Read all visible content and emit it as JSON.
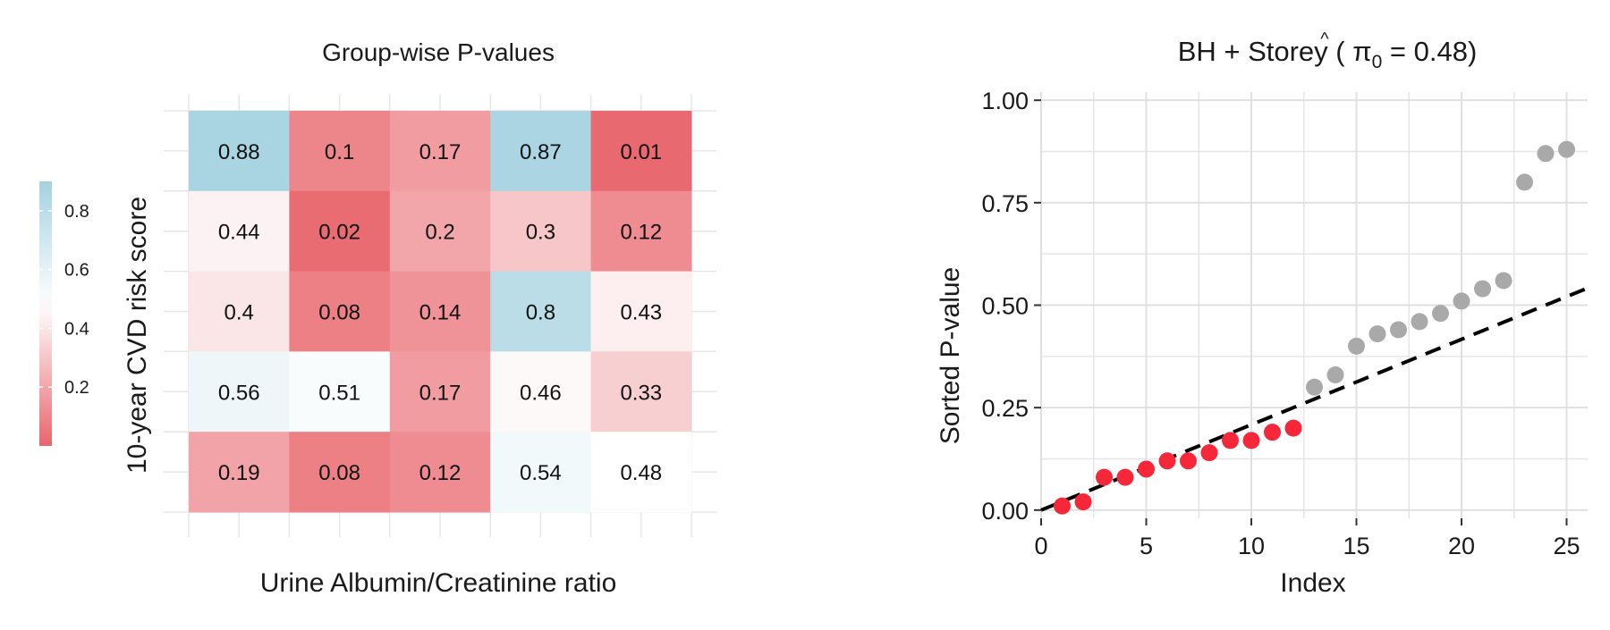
{
  "chart_data": [
    {
      "type": "heatmap",
      "title": "Group-wise P-values",
      "xlabel": "Urine Albumin/Creatinine ratio",
      "ylabel": "10-year CVD risk score",
      "rows": 5,
      "cols": 5,
      "values": [
        [
          0.88,
          0.1,
          0.17,
          0.87,
          0.01
        ],
        [
          0.44,
          0.02,
          0.2,
          0.3,
          0.12
        ],
        [
          0.4,
          0.08,
          0.14,
          0.8,
          0.43
        ],
        [
          0.56,
          0.51,
          0.17,
          0.46,
          0.33
        ],
        [
          0.19,
          0.08,
          0.12,
          0.54,
          0.48
        ]
      ],
      "labels": [
        [
          "0.88",
          "0.1",
          "0.17",
          "0.87",
          "0.01"
        ],
        [
          "0.44",
          "0.02",
          "0.2",
          "0.3",
          "0.12"
        ],
        [
          "0.4",
          "0.08",
          "0.14",
          "0.8",
          "0.43"
        ],
        [
          "0.56",
          "0.51",
          "0.17",
          "0.46",
          "0.33"
        ],
        [
          "0.19",
          "0.08",
          "0.12",
          "0.54",
          "0.48"
        ]
      ],
      "colorscale": {
        "low": "#e8666d",
        "mid": "#ffffff",
        "high": "#a5d2e0",
        "midpoint": 0.48,
        "min": 0.0,
        "max": 0.9
      },
      "legend": {
        "placement": "left",
        "ticks": [
          0.2,
          0.4,
          0.6,
          0.8
        ],
        "tick_labels": [
          "0.2",
          "0.4",
          "0.6",
          "0.8"
        ]
      },
      "grid": true
    },
    {
      "type": "scatter",
      "title_prefix": "BH + Storey ( ",
      "title_symbol": "π",
      "title_hat": "^",
      "title_sub": "0",
      "title_suffix": " = 0.48)",
      "xlabel": "Index",
      "ylabel": "Sorted P-value",
      "xlim": [
        0,
        26
      ],
      "ylim": [
        -0.02,
        1.02
      ],
      "xticks": [
        0,
        5,
        10,
        15,
        20,
        25
      ],
      "xtick_labels": [
        "0",
        "5",
        "10",
        "15",
        "20",
        "25"
      ],
      "yticks": [
        0,
        0.25,
        0.5,
        0.75,
        1.0
      ],
      "ytick_labels": [
        "0.00",
        "0.25",
        "0.50",
        "0.75",
        "1.00"
      ],
      "grid": true,
      "x": [
        1,
        2,
        3,
        4,
        5,
        6,
        7,
        8,
        9,
        10,
        11,
        12,
        13,
        14,
        15,
        16,
        17,
        18,
        19,
        20,
        21,
        22,
        23,
        24,
        25
      ],
      "y": [
        0.01,
        0.02,
        0.08,
        0.08,
        0.1,
        0.12,
        0.12,
        0.14,
        0.17,
        0.17,
        0.19,
        0.2,
        0.3,
        0.33,
        0.4,
        0.43,
        0.44,
        0.46,
        0.48,
        0.51,
        0.54,
        0.56,
        0.8,
        0.87,
        0.88
      ],
      "rejected_count": 12,
      "rejected_color": "#f7273a",
      "other_color": "#a9a9a9",
      "line": {
        "x": [
          0,
          26
        ],
        "y": [
          0,
          0.5417
        ],
        "style": "dashed",
        "color": "#000000"
      }
    }
  ]
}
